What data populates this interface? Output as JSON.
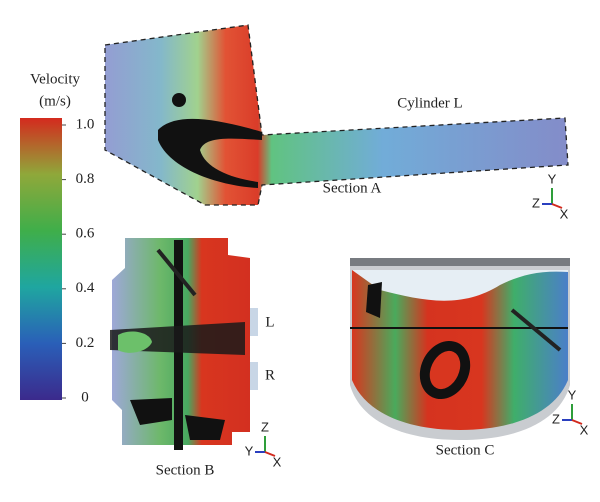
{
  "colorbar": {
    "title": "Velocity",
    "unit": "(m/s)",
    "lim": [
      0,
      1
    ],
    "ticks": [
      {
        "value": 1,
        "label": "1.0"
      },
      0.8,
      0.6,
      0.4,
      0.2,
      0
    ]
  },
  "sections": [
    {
      "label": "Section A",
      "part": "Cylinder L",
      "axes": [
        "Y",
        "Z",
        "X"
      ]
    },
    {
      "label": "Section B",
      "ports": [
        "L",
        "R"
      ],
      "axes": [
        "Z",
        "Y",
        "X"
      ]
    },
    {
      "label": "Section C",
      "axes": [
        "Y",
        "Z",
        "X"
      ]
    }
  ]
}
